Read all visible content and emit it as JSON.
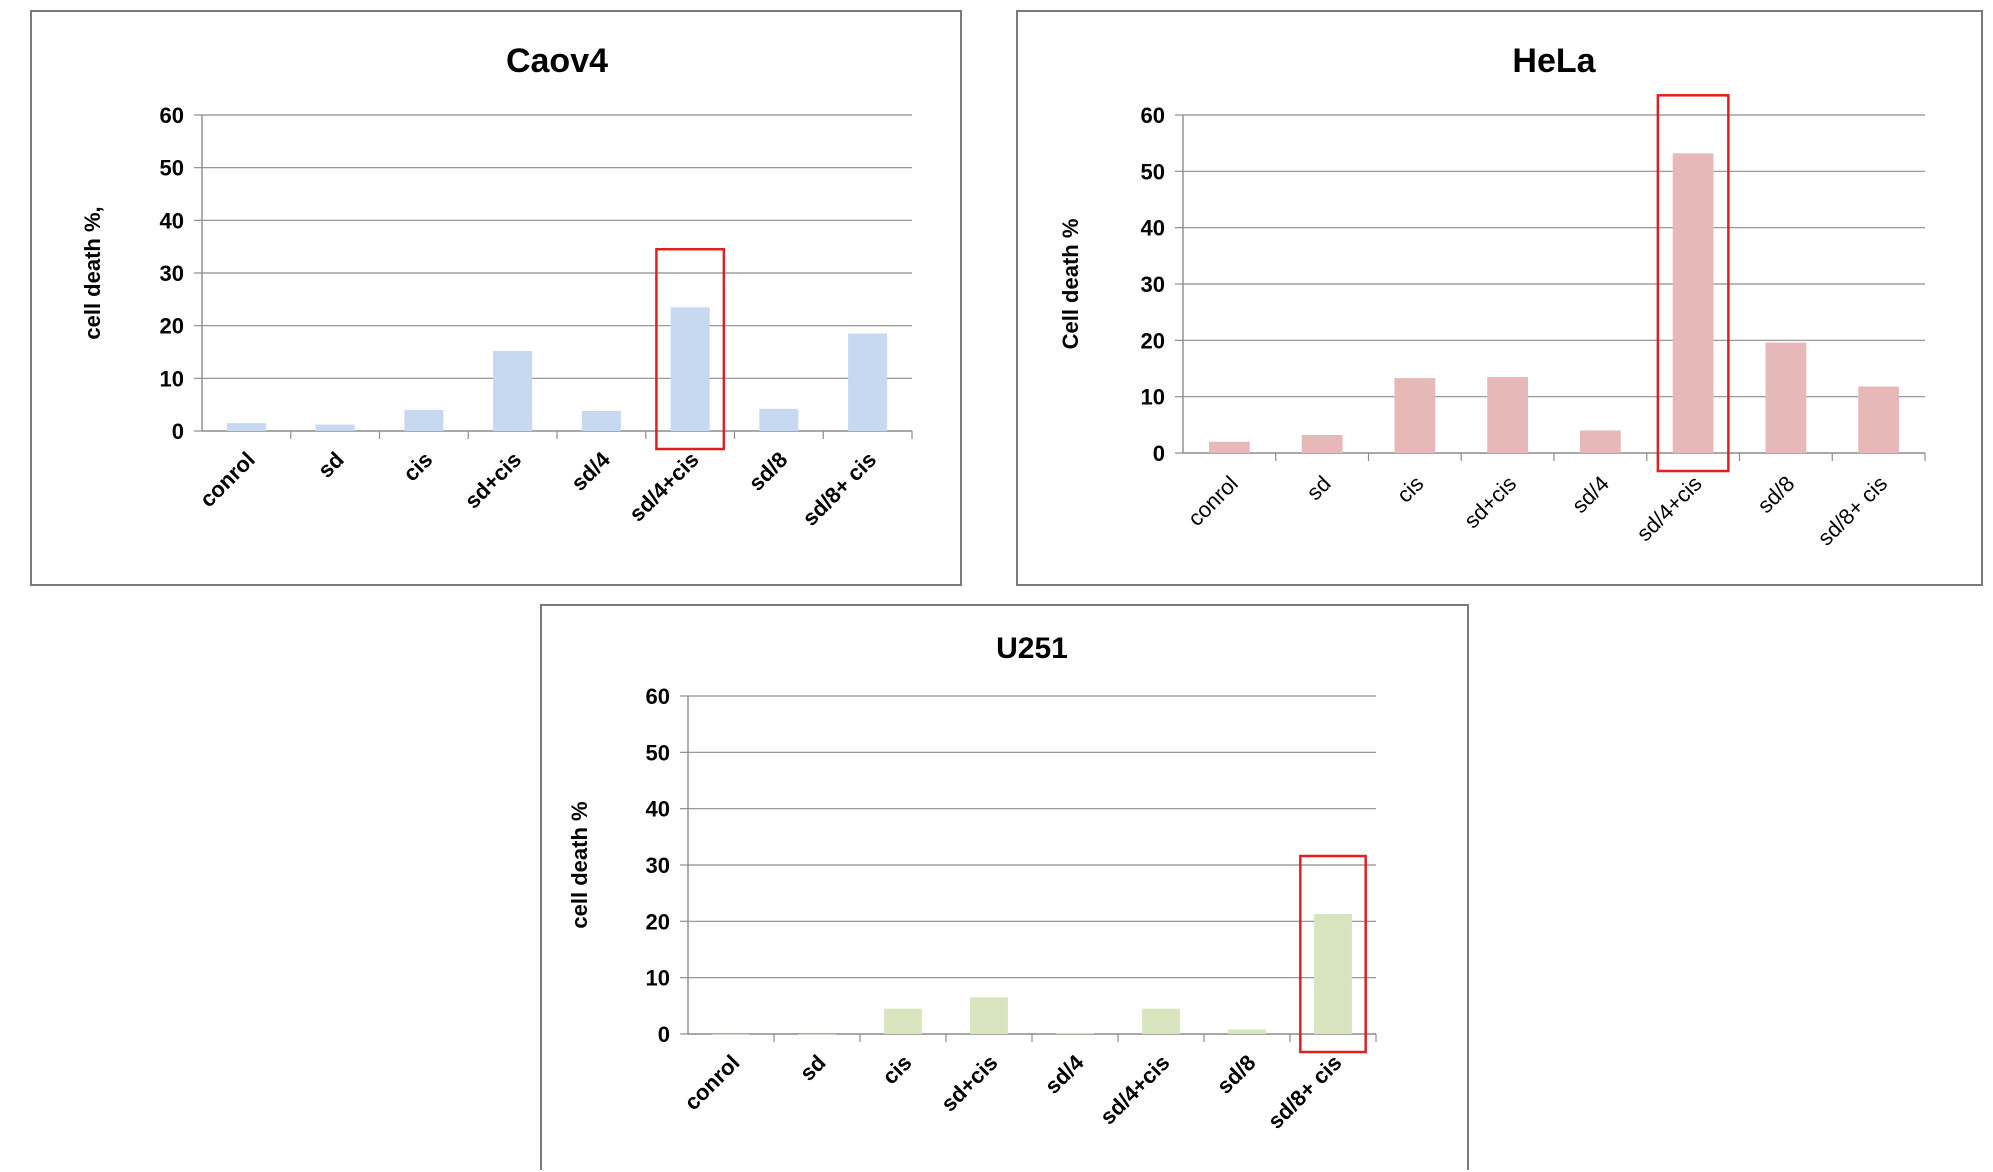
{
  "chart_data": [
    {
      "type": "bar",
      "title": "Caov4",
      "ylabel": "cell death %,",
      "xlabel": "",
      "categories": [
        "conrol",
        "sd",
        "cis",
        "sd+cis",
        "sd/4",
        "sd/4+cis",
        "sd/8",
        "sd/8+ cis"
      ],
      "values": [
        1.5,
        1.2,
        4,
        15.2,
        3.8,
        23.5,
        4.2,
        18.5
      ],
      "ylim": [
        0,
        60
      ],
      "yticks": [
        0,
        10,
        20,
        30,
        40,
        50,
        60
      ],
      "grid": true,
      "bar_color": "#c6d9f0",
      "highlight_index": 5,
      "highlight_color": "#e02020",
      "category_labels_bold": true
    },
    {
      "type": "bar",
      "title": "HeLa",
      "ylabel": "Cell death %",
      "xlabel": "",
      "categories": [
        "conrol",
        "sd",
        "cis",
        "sd+cis",
        "sd/4",
        "sd/4+cis",
        "sd/8",
        "sd/8+ cis"
      ],
      "values": [
        2,
        3.2,
        13.3,
        13.5,
        4,
        53.2,
        19.6,
        11.8
      ],
      "ylim": [
        0,
        60
      ],
      "yticks": [
        0,
        10,
        20,
        30,
        40,
        50,
        60
      ],
      "grid": true,
      "bar_color": "#e6b9b8",
      "highlight_index": 5,
      "highlight_color": "#e02020",
      "category_labels_bold": false
    },
    {
      "type": "bar",
      "title": "U251",
      "ylabel": "cell death %",
      "xlabel": "",
      "categories": [
        "conrol",
        "sd",
        "cis",
        "sd+cis",
        "sd/4",
        "sd/4+cis",
        "sd/8",
        "sd/8+ cis"
      ],
      "values": [
        0,
        0,
        4.5,
        6.5,
        0.2,
        4.5,
        0.8,
        21.3
      ],
      "ylim": [
        0,
        60
      ],
      "yticks": [
        0,
        10,
        20,
        30,
        40,
        50,
        60
      ],
      "grid": true,
      "bar_color": "#d7e4bd",
      "highlight_index": 7,
      "highlight_color": "#e02020",
      "category_labels_bold": true
    }
  ]
}
